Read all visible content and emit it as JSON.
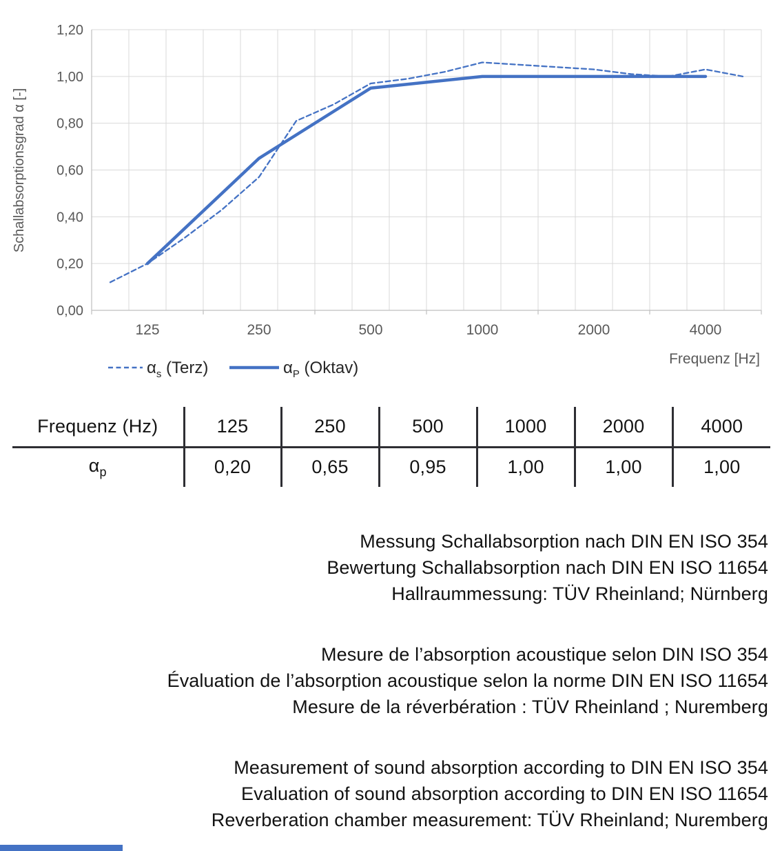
{
  "chart": {
    "y_axis_title": "Schallabsorptionsgrad α [-]",
    "x_axis_title": "Frequenz [Hz]",
    "y_ticks": [
      "0,00",
      "0,20",
      "0,40",
      "0,60",
      "0,80",
      "1,00",
      "1,20"
    ],
    "x_tick_labels": [
      "125",
      "250",
      "500",
      "1000",
      "2000",
      "4000"
    ],
    "x_label_cat_indices": [
      1,
      4,
      7,
      10,
      13,
      16
    ],
    "line_color": "#4472C4",
    "grid_color": "#D9D9D9",
    "axis_color": "#BFBFBF",
    "label_color": "#595959",
    "legend": [
      {
        "symbol": "α",
        "sub": "s",
        "rest": " (Terz)",
        "style": "dashed"
      },
      {
        "symbol": "α",
        "sub": "P",
        "rest": " (Oktav)",
        "style": "solid"
      }
    ]
  },
  "chart_data": {
    "type": "line",
    "title": "",
    "xlabel": "Frequenz [Hz]",
    "ylabel": "Schallabsorptionsgrad α [-]",
    "x_scale": "logarithmic (third-octave categories)",
    "categories": [
      100,
      125,
      160,
      200,
      250,
      315,
      400,
      500,
      630,
      800,
      1000,
      1250,
      1600,
      2000,
      2500,
      3150,
      4000,
      5000
    ],
    "series": [
      {
        "name": "αs (Terz)",
        "style": "dashed",
        "categories": [
          100,
          125,
          160,
          200,
          250,
          315,
          400,
          500,
          630,
          800,
          1000,
          1250,
          1600,
          2000,
          2500,
          3150,
          4000,
          5000
        ],
        "values": [
          0.12,
          0.2,
          0.31,
          0.43,
          0.57,
          0.81,
          0.88,
          0.97,
          0.99,
          1.02,
          1.06,
          1.05,
          1.04,
          1.03,
          1.01,
          1.0,
          1.03,
          1.0
        ]
      },
      {
        "name": "αP (Oktav)",
        "style": "solid",
        "categories": [
          125,
          250,
          500,
          1000,
          2000,
          4000
        ],
        "values": [
          0.2,
          0.65,
          0.95,
          1.0,
          1.0,
          1.0
        ]
      }
    ],
    "ylim": [
      0,
      1.2
    ],
    "grid": true,
    "legend_position": "bottom-left"
  },
  "table": {
    "header": [
      "Frequenz (Hz)",
      "125",
      "250",
      "500",
      "1000",
      "2000",
      "4000"
    ],
    "row_label_symbol": "α",
    "row_label_sub": "p",
    "values": [
      "0,20",
      "0,65",
      "0,95",
      "1,00",
      "1,00",
      "1,00"
    ]
  },
  "notes": [
    {
      "lang": "de",
      "lines": [
        "Messung Schallabsorption nach DIN EN ISO 354",
        "Bewertung Schallabsorption nach DIN EN ISO 11654",
        "Hallraummessung: TÜV Rheinland; Nürnberg"
      ]
    },
    {
      "lang": "fr",
      "lines": [
        "Mesure de l’absorption acoustique selon DIN ISO 354",
        "Évaluation de l’absorption acoustique selon la norme DIN EN ISO 11654",
        "Mesure de la réverbération : TÜV Rheinland ; Nuremberg"
      ]
    },
    {
      "lang": "en",
      "lines": [
        "Measurement of sound absorption according to DIN EN ISO 354",
        "Evaluation of sound absorption according to DIN EN ISO 11654",
        "Reverberation chamber measurement: TÜV Rheinland; Nuremberg"
      ]
    }
  ],
  "footer": {
    "accent_color": "#4472C4"
  }
}
